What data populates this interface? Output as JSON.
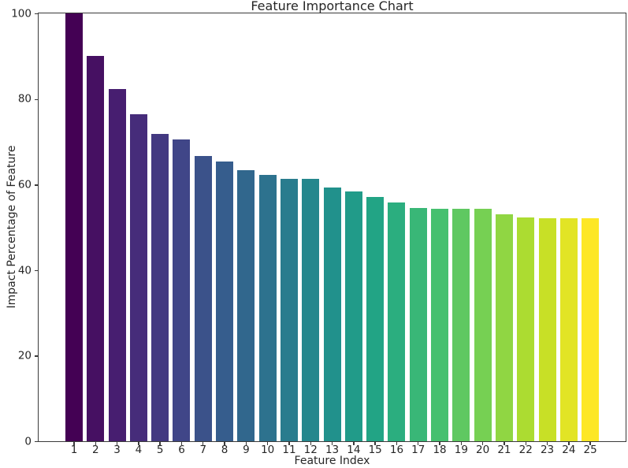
{
  "figure": {
    "background": "#ffffff",
    "spine_color": "#3a3a3a",
    "text_color": "#262626"
  },
  "chart_data": {
    "type": "bar",
    "title": "Feature Importance Chart",
    "xlabel": "Feature Index",
    "ylabel": "Impact Percentage of Feature",
    "categories": [
      "1",
      "2",
      "3",
      "4",
      "5",
      "6",
      "7",
      "8",
      "9",
      "10",
      "11",
      "12",
      "13",
      "14",
      "15",
      "16",
      "17",
      "18",
      "19",
      "20",
      "21",
      "22",
      "23",
      "24",
      "25"
    ],
    "values": [
      100.0,
      90.0,
      82.3,
      76.5,
      71.8,
      70.5,
      66.7,
      65.3,
      63.4,
      62.2,
      61.4,
      61.3,
      59.4,
      58.4,
      57.1,
      55.8,
      54.5,
      54.4,
      54.4,
      54.3,
      53.1,
      52.4,
      52.2,
      52.2,
      52.1
    ],
    "bar_colors": [
      "#440154",
      "#461062",
      "#471e70",
      "#462c7a",
      "#433981",
      "#404688",
      "#3b528a",
      "#365d8d",
      "#31678d",
      "#2d728e",
      "#297c8e",
      "#25878d",
      "#21918c",
      "#219b89",
      "#22a485",
      "#2bae7f",
      "#39b777",
      "#46c06f",
      "#5fc861",
      "#76d053",
      "#90d643",
      "#acdc31",
      "#c8e026",
      "#e2e425",
      "#fde725"
    ],
    "colormap": "viridis",
    "ylim": [
      0,
      100
    ],
    "yticks": [
      0,
      20,
      40,
      60,
      80,
      100
    ],
    "grid": false,
    "legend": "none"
  }
}
